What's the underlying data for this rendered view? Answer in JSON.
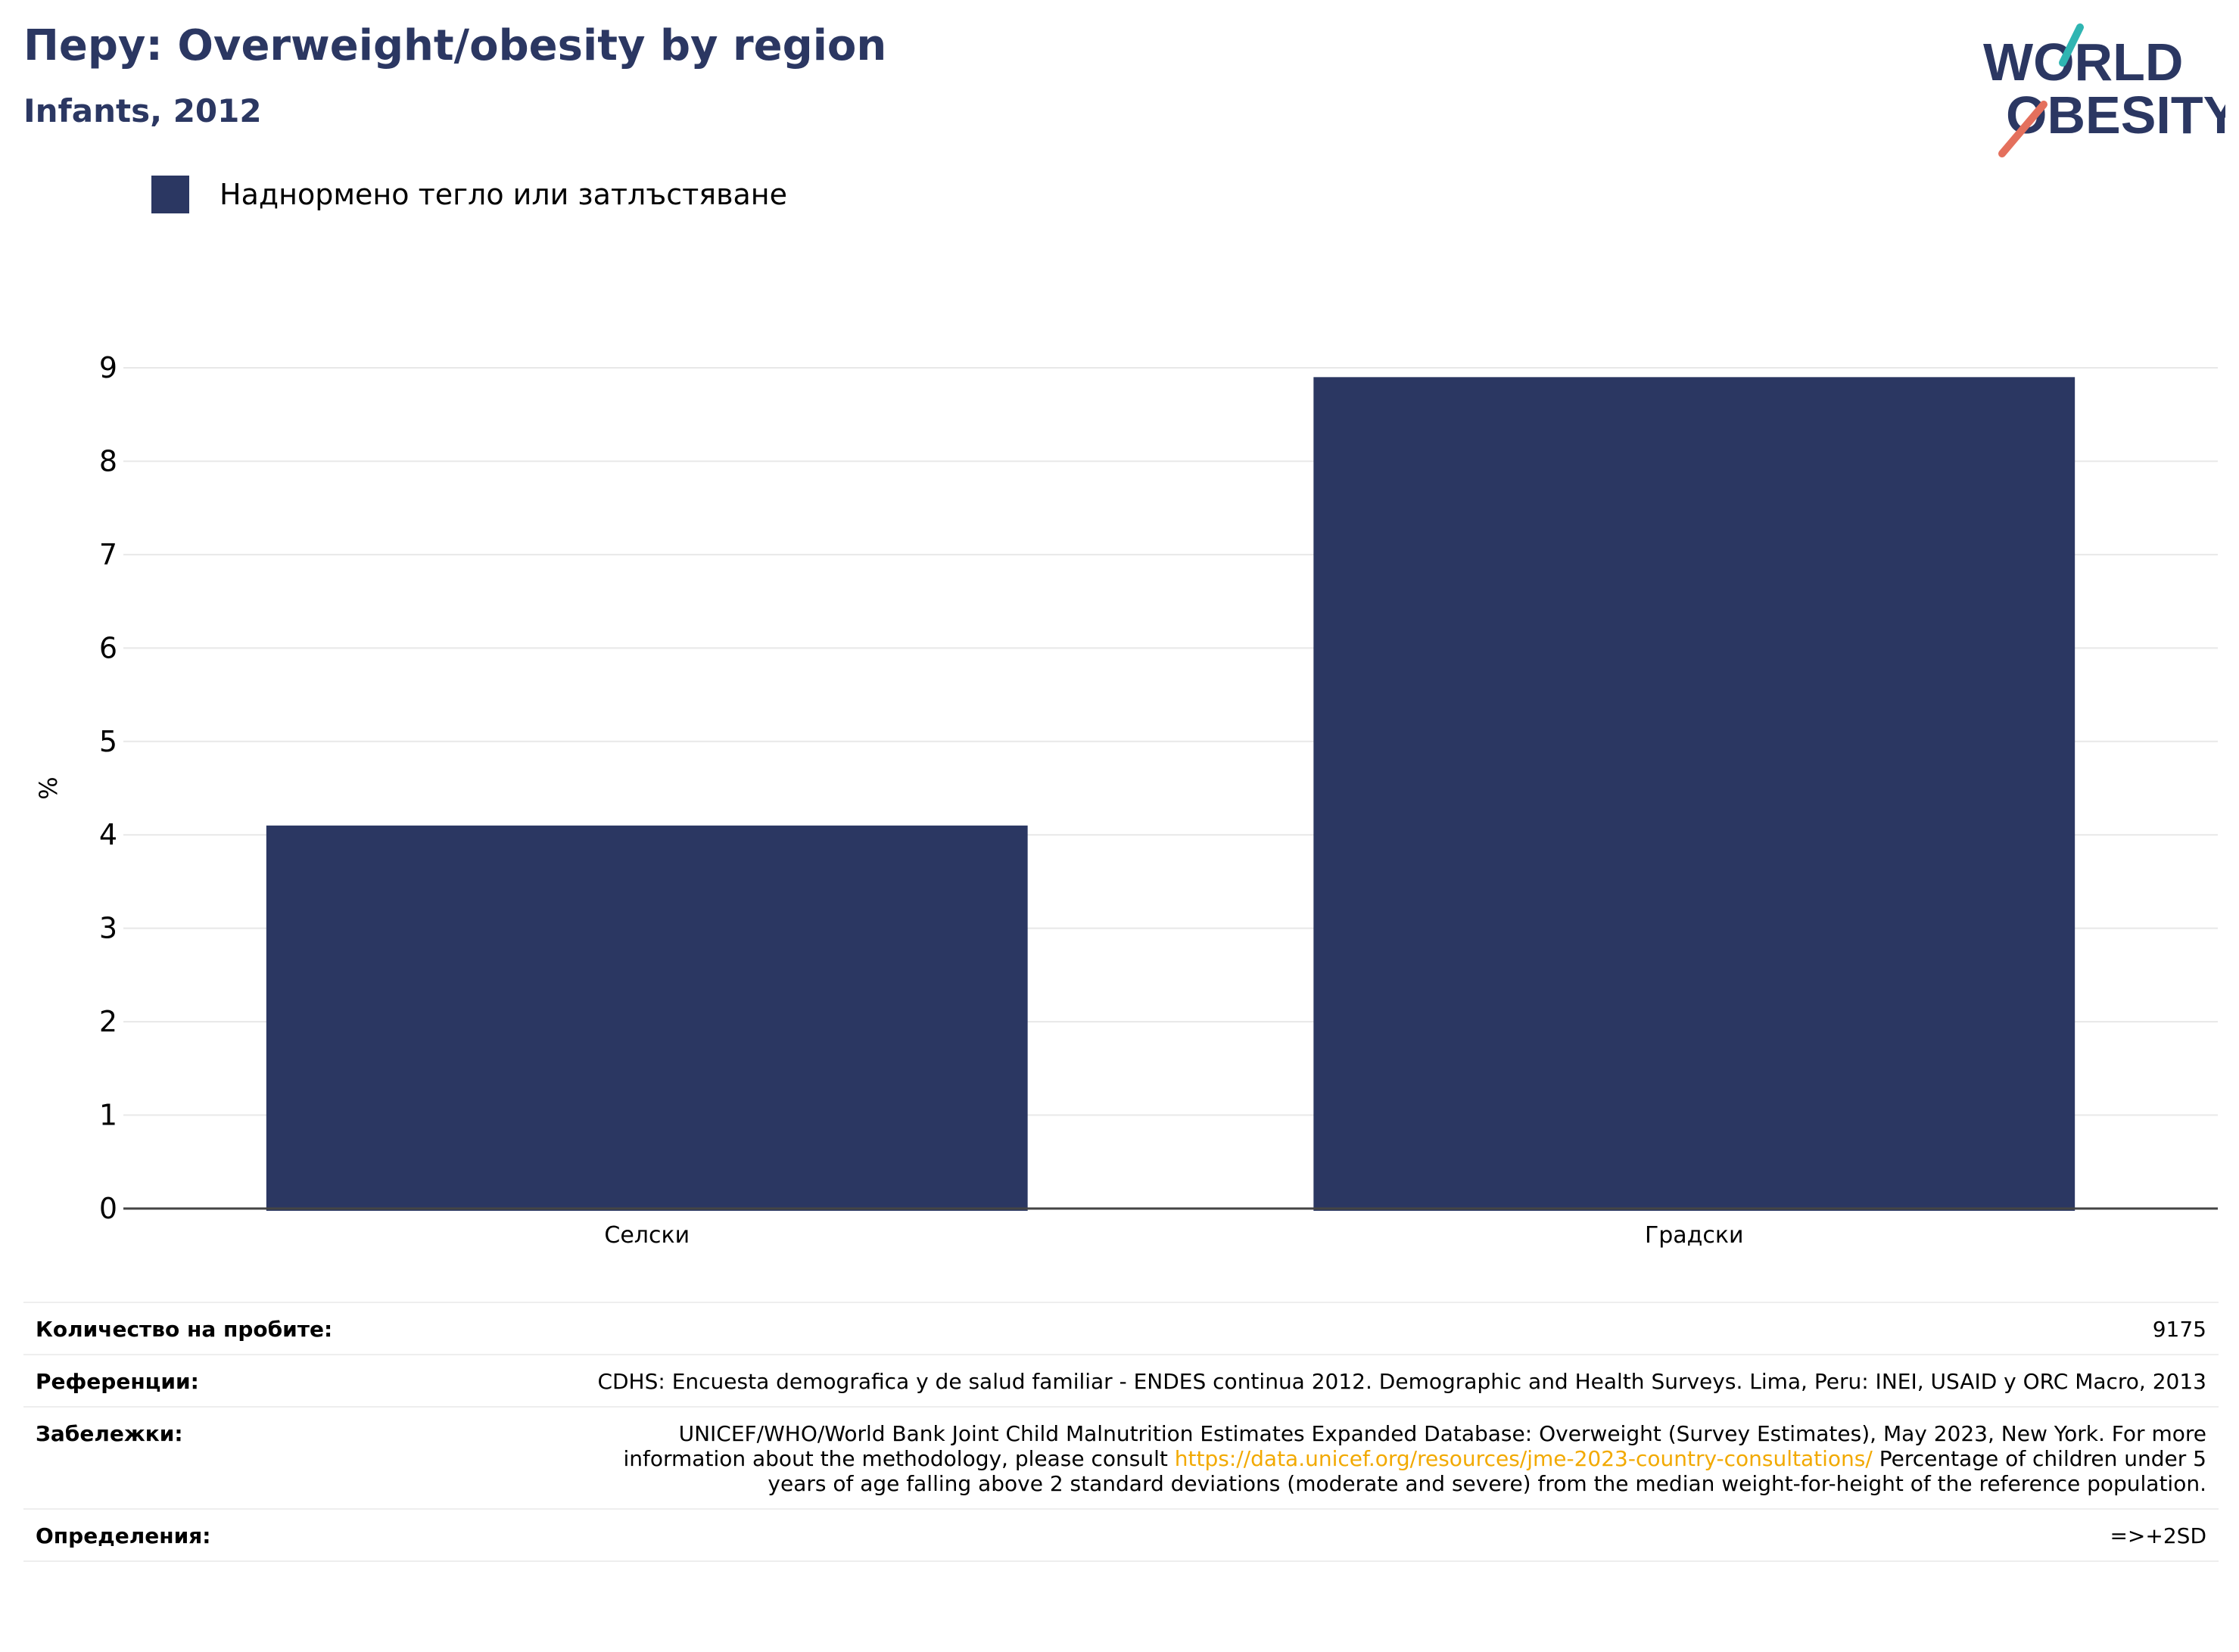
{
  "header": {
    "title": "Перу: Overweight/obesity by region",
    "subtitle": "Infants, 2012"
  },
  "logo": {
    "line1": "WORLD",
    "line2": "OBESITY"
  },
  "colors": {
    "bar": "#2b3762",
    "title": "#2b3762",
    "link": "#f2a900",
    "logo_teal": "#2fb5b2",
    "logo_coral": "#e4705d"
  },
  "chart_data": {
    "type": "bar",
    "categories": [
      "Селски",
      "Градски"
    ],
    "series": [
      {
        "name": "Наднормено тегло или затлъстяване",
        "values": [
          4.1,
          8.9
        ]
      }
    ],
    "ylabel": "%",
    "ylim": [
      0,
      9
    ],
    "yticks": [
      0,
      1,
      2,
      3,
      4,
      5,
      6,
      7,
      8,
      9
    ],
    "grid": true,
    "legend": "top-left"
  },
  "meta": {
    "rows": [
      {
        "label": "Количество на пробите:",
        "value": "9175"
      },
      {
        "label": "Референции:",
        "value": "CDHS: Encuesta demografica y de salud familiar - ENDES continua 2012. Demographic and Health Surveys. Lima, Peru: INEI, USAID y ORC Macro, 2013"
      },
      {
        "label": "Забележки:",
        "value_pre": "UNICEF/WHO/World Bank Joint Child Malnutrition Estimates Expanded Database: Overweight (Survey Estimates), May 2023, New York. For more information about the methodology, please consult ",
        "link": "https://data.unicef.org/resources/jme-2023-country-consultations/",
        "value_post": " Percentage of children under 5 years of age falling above 2 standard deviations (moderate and severe) from the median weight-for-height of the reference population."
      },
      {
        "label": "Определения:",
        "value": "=>+2SD"
      }
    ]
  }
}
